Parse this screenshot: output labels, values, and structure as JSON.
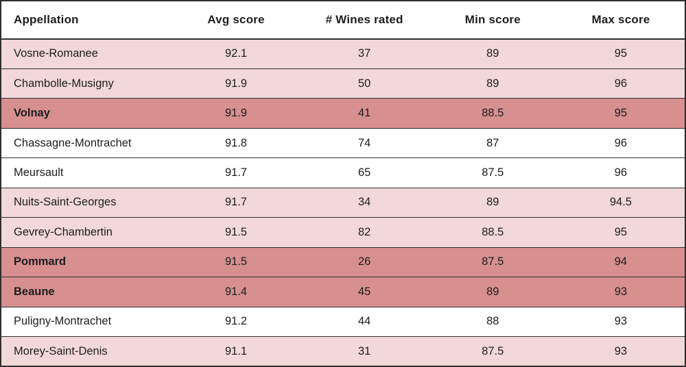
{
  "colors": {
    "border": "#2e2e2e",
    "text": "#1d1d1d",
    "row_pink": "#f2d8d8",
    "row_highlight": "#d78f8f",
    "row_white": "#ffffff"
  },
  "chart_data": {
    "type": "table",
    "columns": [
      "Appellation",
      "Avg score",
      "# Wines rated",
      "Min score",
      "Max score"
    ],
    "highlighted_rows": [
      "Volnay",
      "Pommard",
      "Beaune"
    ],
    "rows": [
      {
        "appellation": "Vosne-Romanee",
        "avg_score": "92.1",
        "wines_rated": "37",
        "min_score": "89",
        "max_score": "95",
        "row_style": "pink"
      },
      {
        "appellation": "Chambolle-Musigny",
        "avg_score": "91.9",
        "wines_rated": "50",
        "min_score": "89",
        "max_score": "96",
        "row_style": "pink"
      },
      {
        "appellation": "Volnay",
        "avg_score": "91.9",
        "wines_rated": "41",
        "min_score": "88.5",
        "max_score": "95",
        "row_style": "highlight"
      },
      {
        "appellation": "Chassagne-Montrachet",
        "avg_score": "91.8",
        "wines_rated": "74",
        "min_score": "87",
        "max_score": "96",
        "row_style": "white"
      },
      {
        "appellation": "Meursault",
        "avg_score": "91.7",
        "wines_rated": "65",
        "min_score": "87.5",
        "max_score": "96",
        "row_style": "white"
      },
      {
        "appellation": "Nuits-Saint-Georges",
        "avg_score": "91.7",
        "wines_rated": "34",
        "min_score": "89",
        "max_score": "94.5",
        "row_style": "pink"
      },
      {
        "appellation": "Gevrey-Chambertin",
        "avg_score": "91.5",
        "wines_rated": "82",
        "min_score": "88.5",
        "max_score": "95",
        "row_style": "pink"
      },
      {
        "appellation": "Pommard",
        "avg_score": "91.5",
        "wines_rated": "26",
        "min_score": "87.5",
        "max_score": "94",
        "row_style": "highlight"
      },
      {
        "appellation": "Beaune",
        "avg_score": "91.4",
        "wines_rated": "45",
        "min_score": "89",
        "max_score": "93",
        "row_style": "highlight"
      },
      {
        "appellation": "Puligny-Montrachet",
        "avg_score": "91.2",
        "wines_rated": "44",
        "min_score": "88",
        "max_score": "93",
        "row_style": "white"
      },
      {
        "appellation": "Morey-Saint-Denis",
        "avg_score": "91.1",
        "wines_rated": "31",
        "min_score": "87.5",
        "max_score": "93",
        "row_style": "pink"
      }
    ]
  }
}
